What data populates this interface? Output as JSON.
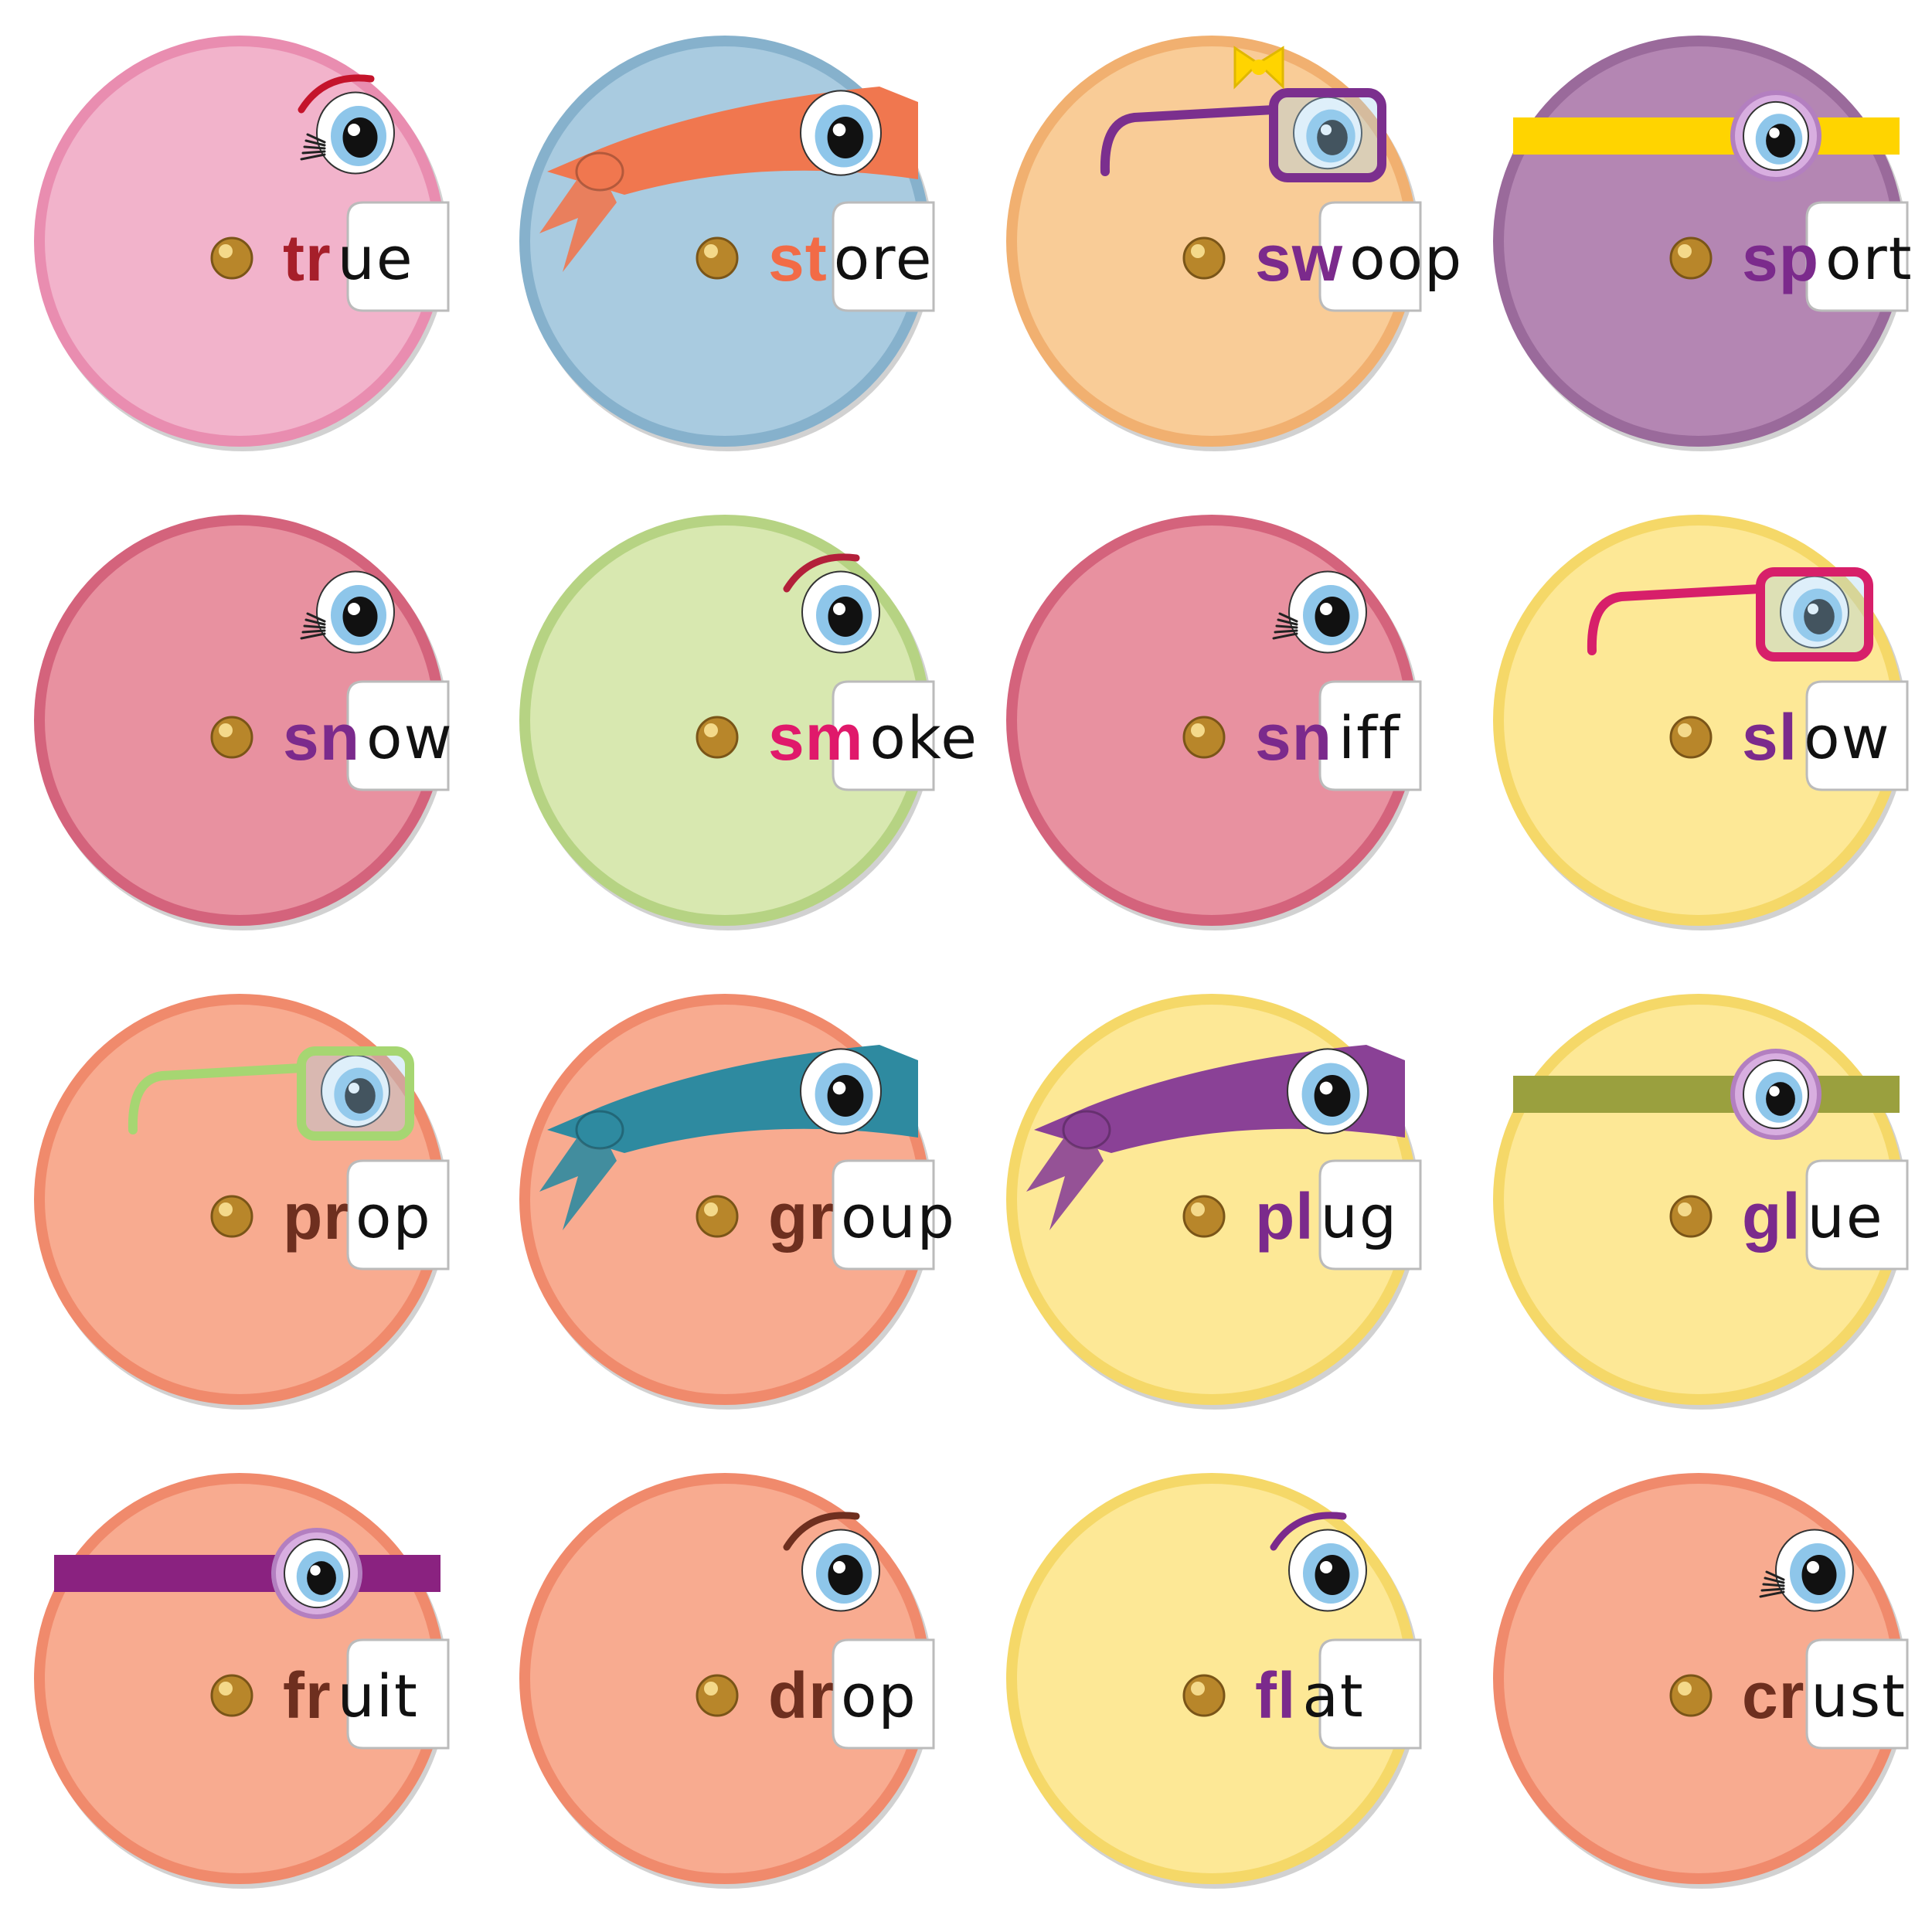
{
  "wheels": [
    {
      "blend": "tr",
      "rime": "ue",
      "fill": "#f2b3cb",
      "rim": "#e98db0",
      "blendColor": "#a61f2a",
      "accessory": "eye-lash-brow",
      "accent": "#c4142b"
    },
    {
      "blend": "st",
      "rime": "ore",
      "fill": "#a9cbe0",
      "rim": "#86b1cc",
      "blendColor": "#f26b46",
      "accessory": "bandana",
      "accent": "#f0774f"
    },
    {
      "blend": "sw",
      "rime": "oop",
      "fill": "#f9cc97",
      "rim": "#f1b070",
      "blendColor": "#7b2a8c",
      "accessory": "glasses-bow",
      "accent": "#7b2f8e"
    },
    {
      "blend": "sp",
      "rime": "ort",
      "fill": "#b486b3",
      "rim": "#9a6a9b",
      "blendColor": "#7b2a8c",
      "accessory": "monocle-band",
      "accent": "#ffd400"
    },
    {
      "blend": "sn",
      "rime": "ow",
      "fill": "#e891a0",
      "rim": "#d4637c",
      "blendColor": "#7b2a8c",
      "accessory": "eye-lash",
      "accent": "#222"
    },
    {
      "blend": "sm",
      "rime": "oke",
      "fill": "#d8e8b0",
      "rim": "#b6d383",
      "blendColor": "#e0196b",
      "accessory": "eye-brow",
      "accent": "#b3203a"
    },
    {
      "blend": "sn",
      "rime": "iff",
      "fill": "#e891a0",
      "rim": "#d4637c",
      "blendColor": "#7b2a8c",
      "accessory": "eye-lash",
      "accent": "#222"
    },
    {
      "blend": "sl",
      "rime": "ow",
      "fill": "#fde896",
      "rim": "#f5d868",
      "blendColor": "#7b2a8c",
      "accessory": "glasses",
      "accent": "#d71f6a"
    },
    {
      "blend": "pr",
      "rime": "op",
      "fill": "#f8ab90",
      "rim": "#f08a6c",
      "blendColor": "#6e2f1f",
      "accessory": "glasses",
      "accent": "#a6d672"
    },
    {
      "blend": "gr",
      "rime": "oup",
      "fill": "#f8ab90",
      "rim": "#f08a6c",
      "blendColor": "#6e2f1f",
      "accessory": "bandana",
      "accent": "#2e8aa0"
    },
    {
      "blend": "pl",
      "rime": "ug",
      "fill": "#fde896",
      "rim": "#f5d868",
      "blendColor": "#7b2a8c",
      "accessory": "bandana",
      "accent": "#8a4196"
    },
    {
      "blend": "gl",
      "rime": "ue",
      "fill": "#fde896",
      "rim": "#f5d868",
      "blendColor": "#7b2a8c",
      "accessory": "monocle-band",
      "accent": "#9aa03e"
    },
    {
      "blend": "fr",
      "rime": "uit",
      "fill": "#f8ab90",
      "rim": "#f08a6c",
      "blendColor": "#6e2f1f",
      "accessory": "monocle-band",
      "accent": "#8a2280"
    },
    {
      "blend": "dr",
      "rime": "op",
      "fill": "#f8ab90",
      "rim": "#f08a6c",
      "blendColor": "#6e2f1f",
      "accessory": "eye-brow",
      "accent": "#6e2f1f"
    },
    {
      "blend": "fl",
      "rime": "at",
      "fill": "#fde896",
      "rim": "#f5d868",
      "blendColor": "#7b2a8c",
      "accessory": "eye-brow",
      "accent": "#7b2a8c"
    },
    {
      "blend": "cr",
      "rime": "ust",
      "fill": "#f8ab90",
      "rim": "#f08a6c",
      "blendColor": "#6e2f1f",
      "accessory": "eye-lash",
      "accent": "#222"
    }
  ]
}
